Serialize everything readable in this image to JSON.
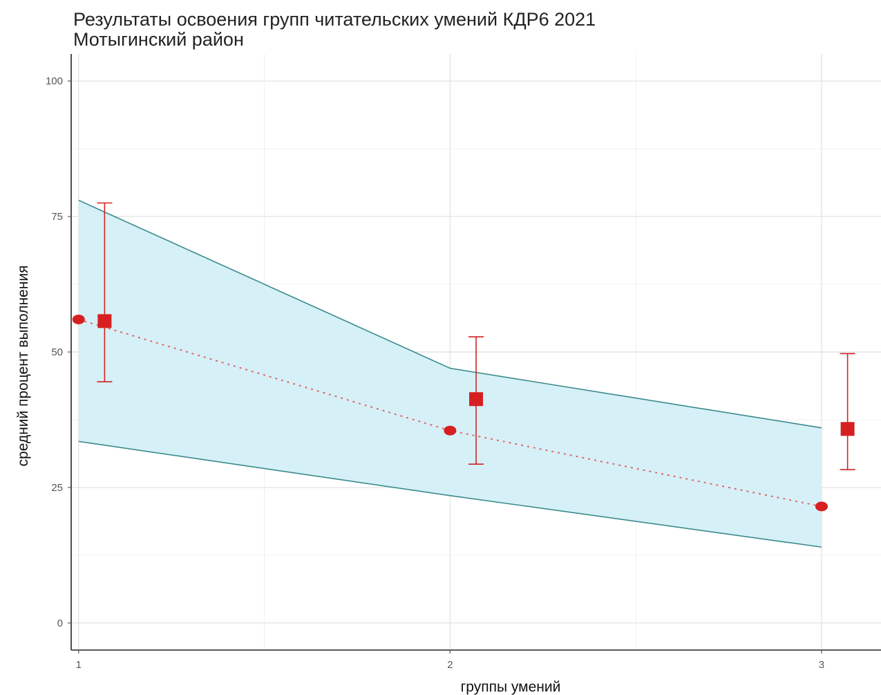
{
  "chart_data": {
    "type": "line",
    "title": "Результаты освоения групп читательских умений КДР6 2021",
    "subtitle": "Мотыгинский район",
    "xlabel": "группы умений",
    "ylabel": "средний процент выполнения",
    "x_ticks": [
      "1",
      "2",
      "3"
    ],
    "y_ticks": [
      "0",
      "25",
      "50",
      "75",
      "100"
    ],
    "xlim": [
      0.98,
      3.16
    ],
    "ylim": [
      -5,
      105
    ],
    "grid": true,
    "band": {
      "x": [
        1,
        2,
        3
      ],
      "upper": [
        78,
        47,
        36
      ],
      "lower": [
        33.5,
        23.5,
        14
      ],
      "fill": "#d6f0f8",
      "stroke": "#3a8a8c"
    },
    "dotted_line": {
      "x": [
        1,
        2,
        3
      ],
      "y": [
        56,
        35.5,
        21.5
      ],
      "color": "#e06666"
    },
    "series": [
      {
        "marker": "circle",
        "color": "#d62020",
        "x": [
          1,
          2,
          3
        ],
        "y": [
          56,
          35.5,
          21.5
        ]
      },
      {
        "marker": "square",
        "color": "#d62020",
        "x": [
          1.07,
          2.07,
          3.07
        ],
        "y": [
          55.7,
          41.3,
          35.8
        ],
        "error_low": [
          44.5,
          29.3,
          28.3
        ],
        "error_high": [
          77.5,
          52.8,
          49.7
        ]
      }
    ]
  }
}
